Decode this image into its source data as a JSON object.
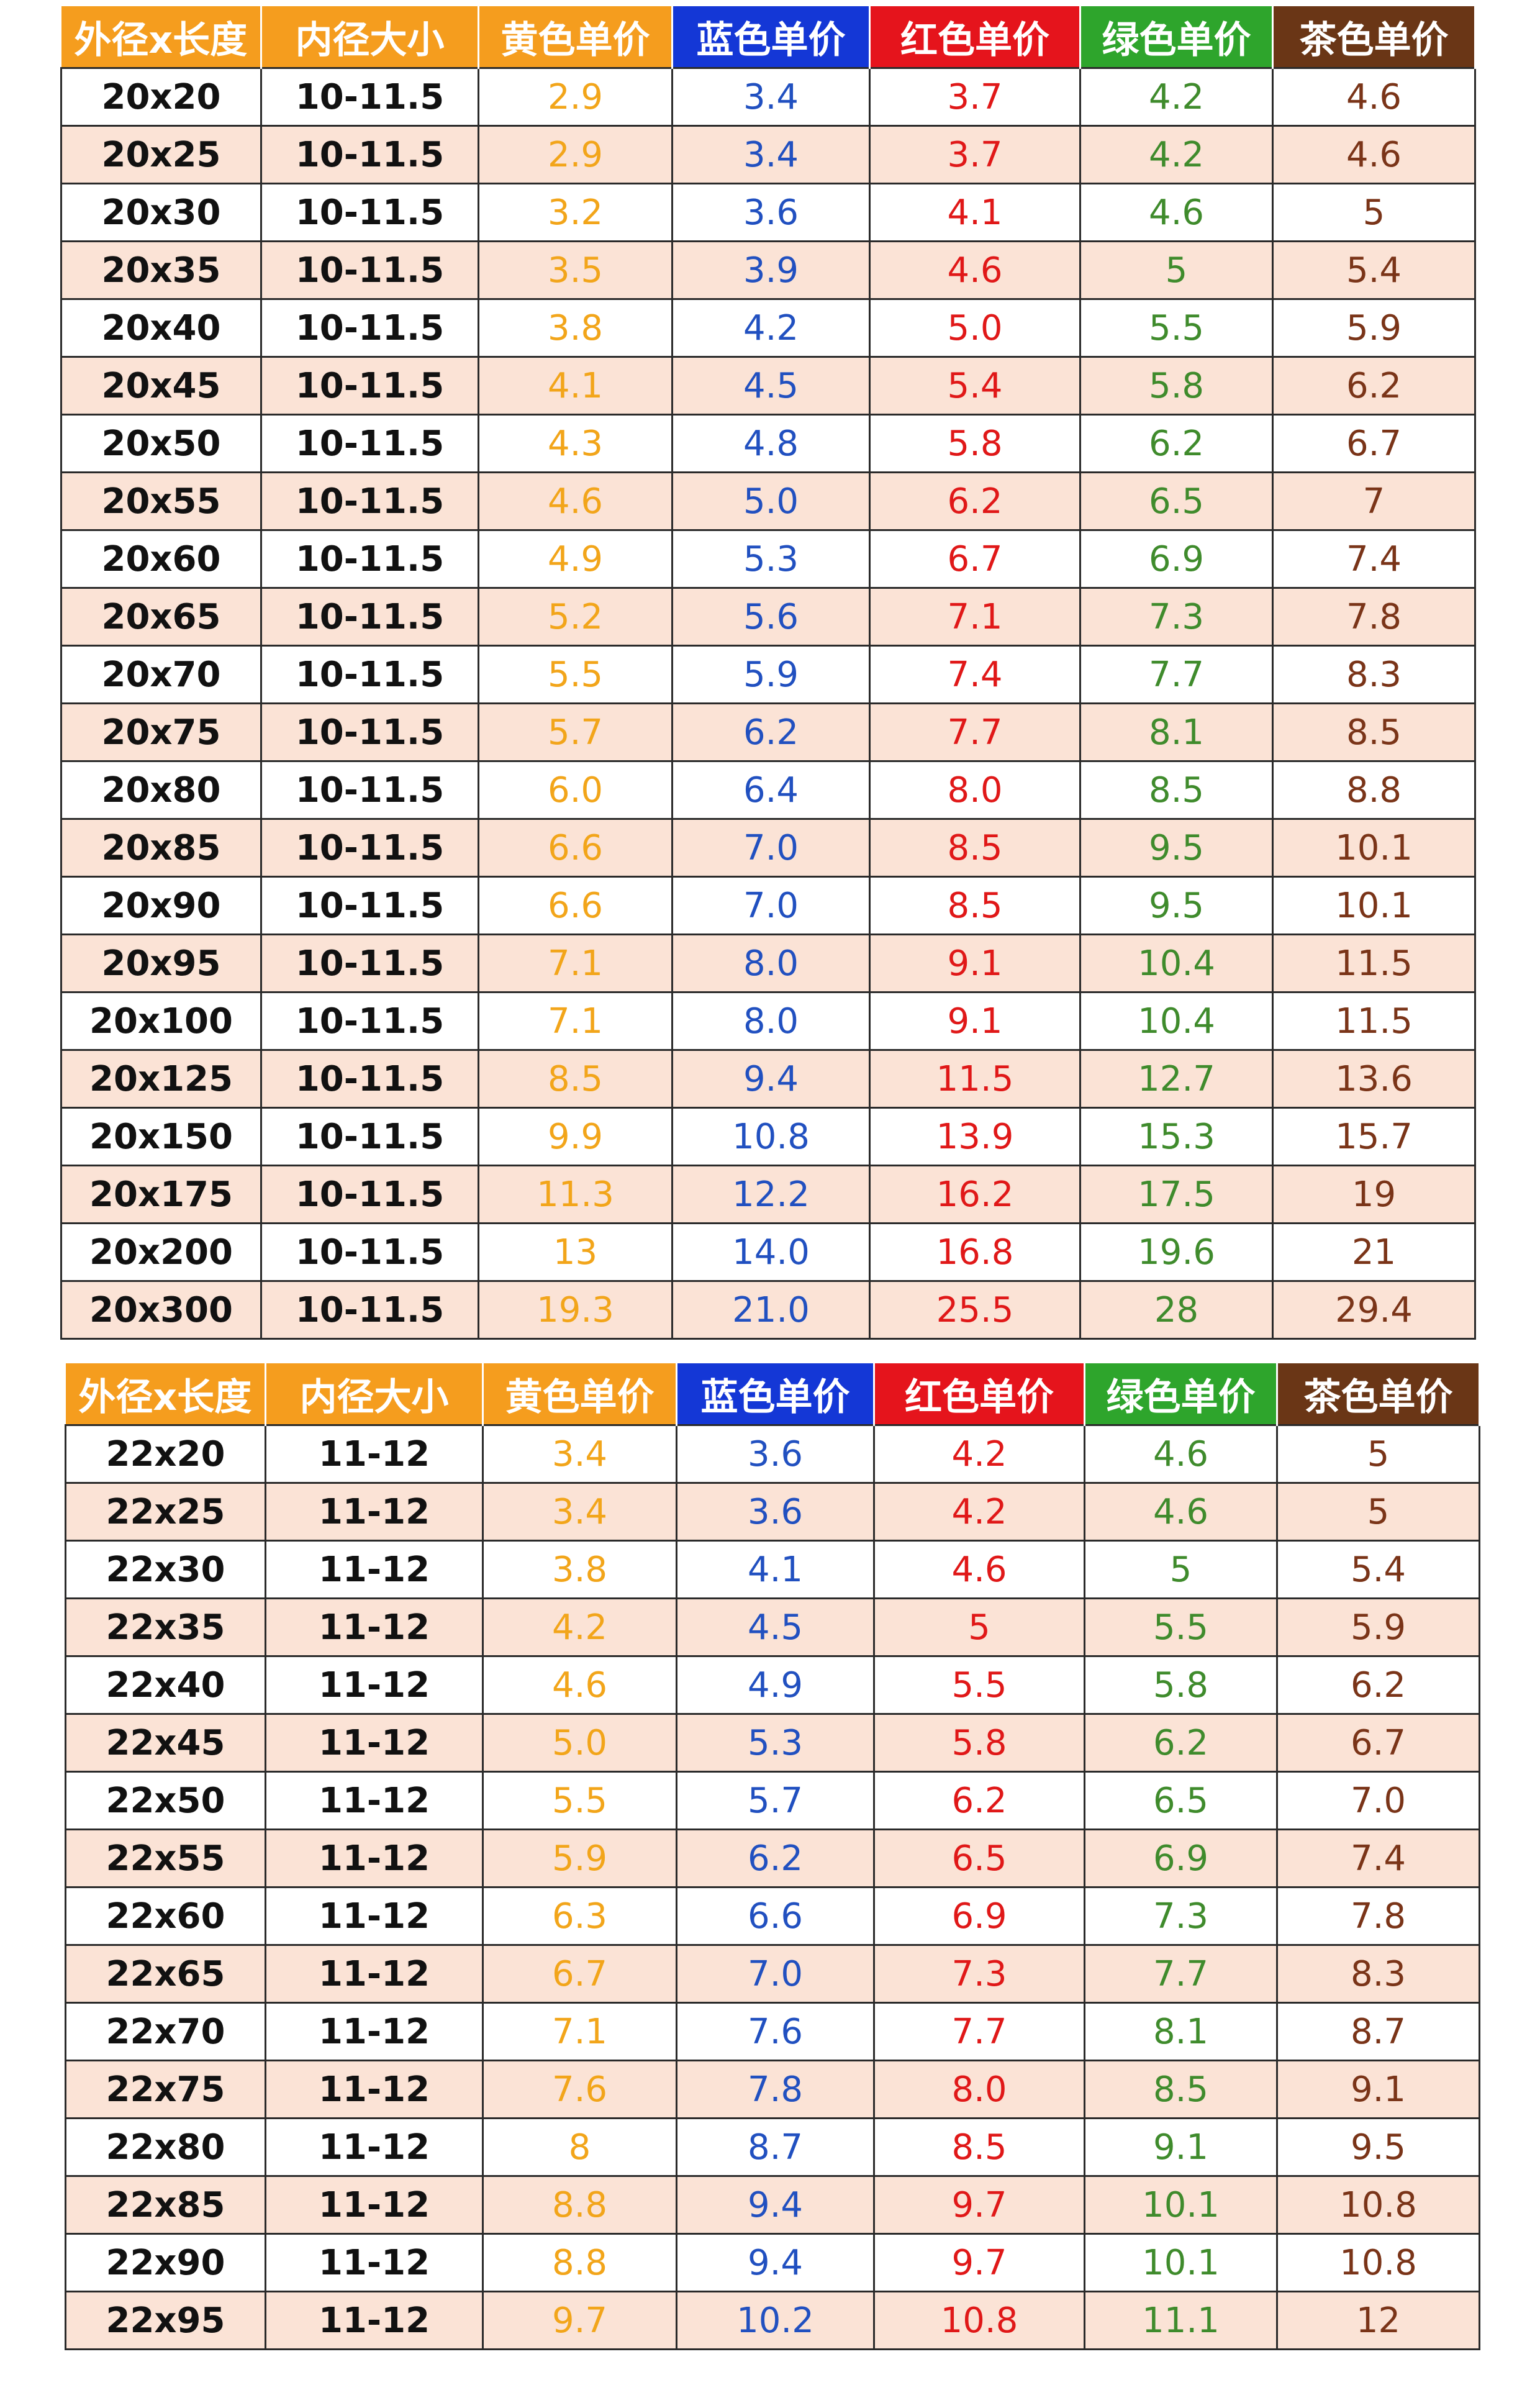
{
  "colors": {
    "header_orange": "#f59d1e",
    "header_blue": "#1437d6",
    "header_red": "#e5141c",
    "header_green": "#2ea52c",
    "header_brown": "#6a3616",
    "value_yellow": "#f2a51a",
    "value_blue": "#2150c0",
    "value_red": "#e01818",
    "value_green": "#3f8b2c",
    "value_brown": "#7a3418",
    "row_stripe": "#fbe3d6"
  },
  "headers": [
    "外径x长度",
    "内径大小",
    "黄色单价",
    "蓝色单价",
    "红色单价",
    "绿色单价",
    "茶色单价"
  ],
  "tables": [
    {
      "rows": [
        [
          "20x20",
          "10-11.5",
          "2.9",
          "3.4",
          "3.7",
          "4.2",
          "4.6"
        ],
        [
          "20x25",
          "10-11.5",
          "2.9",
          "3.4",
          "3.7",
          "4.2",
          "4.6"
        ],
        [
          "20x30",
          "10-11.5",
          "3.2",
          "3.6",
          "4.1",
          "4.6",
          "5"
        ],
        [
          "20x35",
          "10-11.5",
          "3.5",
          "3.9",
          "4.6",
          "5",
          "5.4"
        ],
        [
          "20x40",
          "10-11.5",
          "3.8",
          "4.2",
          "5.0",
          "5.5",
          "5.9"
        ],
        [
          "20x45",
          "10-11.5",
          "4.1",
          "4.5",
          "5.4",
          "5.8",
          "6.2"
        ],
        [
          "20x50",
          "10-11.5",
          "4.3",
          "4.8",
          "5.8",
          "6.2",
          "6.7"
        ],
        [
          "20x55",
          "10-11.5",
          "4.6",
          "5.0",
          "6.2",
          "6.5",
          "7"
        ],
        [
          "20x60",
          "10-11.5",
          "4.9",
          "5.3",
          "6.7",
          "6.9",
          "7.4"
        ],
        [
          "20x65",
          "10-11.5",
          "5.2",
          "5.6",
          "7.1",
          "7.3",
          "7.8"
        ],
        [
          "20x70",
          "10-11.5",
          "5.5",
          "5.9",
          "7.4",
          "7.7",
          "8.3"
        ],
        [
          "20x75",
          "10-11.5",
          "5.7",
          "6.2",
          "7.7",
          "8.1",
          "8.5"
        ],
        [
          "20x80",
          "10-11.5",
          "6.0",
          "6.4",
          "8.0",
          "8.5",
          "8.8"
        ],
        [
          "20x85",
          "10-11.5",
          "6.6",
          "7.0",
          "8.5",
          "9.5",
          "10.1"
        ],
        [
          "20x90",
          "10-11.5",
          "6.6",
          "7.0",
          "8.5",
          "9.5",
          "10.1"
        ],
        [
          "20x95",
          "10-11.5",
          "7.1",
          "8.0",
          "9.1",
          "10.4",
          "11.5"
        ],
        [
          "20x100",
          "10-11.5",
          "7.1",
          "8.0",
          "9.1",
          "10.4",
          "11.5"
        ],
        [
          "20x125",
          "10-11.5",
          "8.5",
          "9.4",
          "11.5",
          "12.7",
          "13.6"
        ],
        [
          "20x150",
          "10-11.5",
          "9.9",
          "10.8",
          "13.9",
          "15.3",
          "15.7"
        ],
        [
          "20x175",
          "10-11.5",
          "11.3",
          "12.2",
          "16.2",
          "17.5",
          "19"
        ],
        [
          "20x200",
          "10-11.5",
          "13",
          "14.0",
          "16.8",
          "19.6",
          "21"
        ],
        [
          "20x300",
          "10-11.5",
          "19.3",
          "21.0",
          "25.5",
          "28",
          "29.4"
        ]
      ]
    },
    {
      "rows": [
        [
          "22x20",
          "11-12",
          "3.4",
          "3.6",
          "4.2",
          "4.6",
          "5"
        ],
        [
          "22x25",
          "11-12",
          "3.4",
          "3.6",
          "4.2",
          "4.6",
          "5"
        ],
        [
          "22x30",
          "11-12",
          "3.8",
          "4.1",
          "4.6",
          "5",
          "5.4"
        ],
        [
          "22x35",
          "11-12",
          "4.2",
          "4.5",
          "5",
          "5.5",
          "5.9"
        ],
        [
          "22x40",
          "11-12",
          "4.6",
          "4.9",
          "5.5",
          "5.8",
          "6.2"
        ],
        [
          "22x45",
          "11-12",
          "5.0",
          "5.3",
          "5.8",
          "6.2",
          "6.7"
        ],
        [
          "22x50",
          "11-12",
          "5.5",
          "5.7",
          "6.2",
          "6.5",
          "7.0"
        ],
        [
          "22x55",
          "11-12",
          "5.9",
          "6.2",
          "6.5",
          "6.9",
          "7.4"
        ],
        [
          "22x60",
          "11-12",
          "6.3",
          "6.6",
          "6.9",
          "7.3",
          "7.8"
        ],
        [
          "22x65",
          "11-12",
          "6.7",
          "7.0",
          "7.3",
          "7.7",
          "8.3"
        ],
        [
          "22x70",
          "11-12",
          "7.1",
          "7.6",
          "7.7",
          "8.1",
          "8.7"
        ],
        [
          "22x75",
          "11-12",
          "7.6",
          "7.8",
          "8.0",
          "8.5",
          "9.1"
        ],
        [
          "22x80",
          "11-12",
          "8",
          "8.7",
          "8.5",
          "9.1",
          "9.5"
        ],
        [
          "22x85",
          "11-12",
          "8.8",
          "9.4",
          "9.7",
          "10.1",
          "10.8"
        ],
        [
          "22x90",
          "11-12",
          "8.8",
          "9.4",
          "9.7",
          "10.1",
          "10.8"
        ],
        [
          "22x95",
          "11-12",
          "9.7",
          "10.2",
          "10.8",
          "11.1",
          "12"
        ]
      ]
    }
  ]
}
